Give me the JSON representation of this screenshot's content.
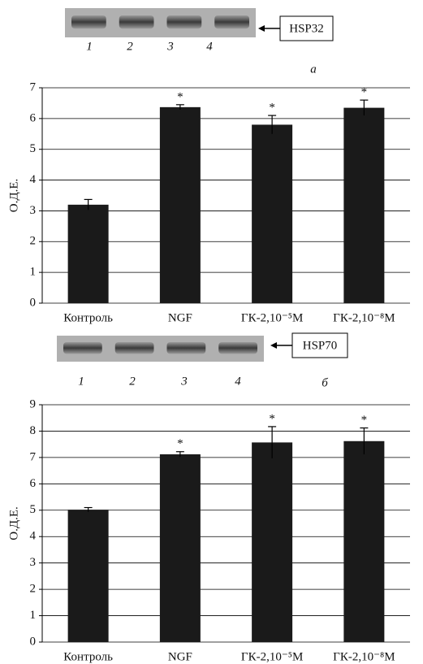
{
  "chart_data": [
    {
      "type": "bar",
      "panel_label": "а",
      "blot_label": "HSP32",
      "lane_labels": [
        "1",
        "2",
        "3",
        "4"
      ],
      "ylabel": "О.Д.Е.",
      "categories": [
        "Контроль",
        "NGF",
        "ГК-2,10⁻⁵М",
        "ГК-2,10⁻⁸М"
      ],
      "values": [
        3.2,
        6.37,
        5.8,
        6.35
      ],
      "errors": [
        0.17,
        0.08,
        0.3,
        0.25
      ],
      "significance": [
        null,
        "*",
        "*",
        "*"
      ],
      "color": "#1a1a1a",
      "ylim": [
        0,
        7
      ],
      "yticks": [
        0,
        1,
        2,
        3,
        4,
        5,
        6,
        7
      ],
      "grid": true
    },
    {
      "type": "bar",
      "panel_label": "б",
      "blot_label": "HSP70",
      "lane_labels": [
        "1",
        "2",
        "3",
        "4"
      ],
      "ylabel": "О.Д.Е.",
      "categories": [
        "Контроль",
        "NGF",
        "ГК-2,10⁻⁵М",
        "ГК-2,10⁻⁸М"
      ],
      "values": [
        5.02,
        7.12,
        7.57,
        7.62
      ],
      "errors": [
        0.08,
        0.1,
        0.6,
        0.5
      ],
      "significance": [
        null,
        "*",
        "*",
        "*"
      ],
      "color": "#1a1a1a",
      "ylim": [
        0,
        9
      ],
      "yticks": [
        0,
        1,
        2,
        3,
        4,
        5,
        6,
        7,
        8,
        9
      ],
      "grid": true
    }
  ]
}
